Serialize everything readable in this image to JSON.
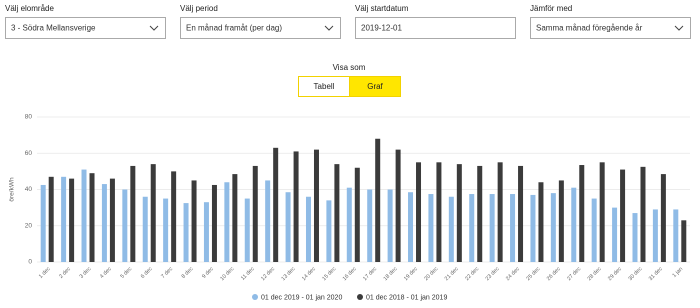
{
  "filters": [
    {
      "label": "Välj elområde",
      "value": "3 - Södra Mellansverige"
    },
    {
      "label": "Välj period",
      "value": "En månad framåt (per dag)"
    },
    {
      "label": "Välj startdatum",
      "value": "2019-12-01"
    },
    {
      "label": "Jämför med",
      "value": "Samma månad föregående år"
    }
  ],
  "view": {
    "label": "Visa som",
    "options": [
      "Tabell",
      "Graf"
    ]
  },
  "chart_data": {
    "type": "bar",
    "y_label": "öre/kWh",
    "categories": [
      "1 dec",
      "2 dec",
      "3 dec",
      "4 dec",
      "5 dec",
      "6 dec",
      "7 dec",
      "8 dec",
      "9 dec",
      "10 dec",
      "11 dec",
      "12 dec",
      "13 dec",
      "14 dec",
      "15 dec",
      "16 dec",
      "17 dec",
      "18 dec",
      "19 dec",
      "20 dec",
      "21 dec",
      "22 dec",
      "23 dec",
      "24 dec",
      "25 dec",
      "26 dec",
      "27 dec",
      "28 dec",
      "29 dec",
      "30 dec",
      "31 dec",
      "1 jan"
    ],
    "series": [
      {
        "name": "01 dec 2019 - 01 jan 2020",
        "color": "#8fbbe6",
        "values": [
          42.5,
          47,
          51,
          43,
          40,
          36,
          35,
          32.5,
          33,
          44,
          35,
          45,
          38.5,
          36,
          34,
          41,
          40,
          40,
          38.5,
          37.5,
          36,
          37.5,
          37.5,
          37.5,
          37,
          38,
          41,
          35,
          30,
          27,
          29,
          29
        ]
      },
      {
        "name": "01 dec 2018 - 01 jan 2019",
        "color": "#3b3b3b",
        "values": [
          47,
          46,
          49,
          46,
          53,
          54,
          50,
          45,
          42.5,
          48.5,
          53,
          63,
          61,
          62,
          54,
          52,
          68,
          62,
          55,
          55,
          54,
          53,
          55,
          53,
          44,
          45,
          53.5,
          55,
          51,
          52.5,
          48.5,
          23
        ]
      }
    ],
    "ylim": [
      0,
      80
    ],
    "yticks": [
      0,
      20,
      40,
      60,
      80
    ],
    "grid": true
  }
}
